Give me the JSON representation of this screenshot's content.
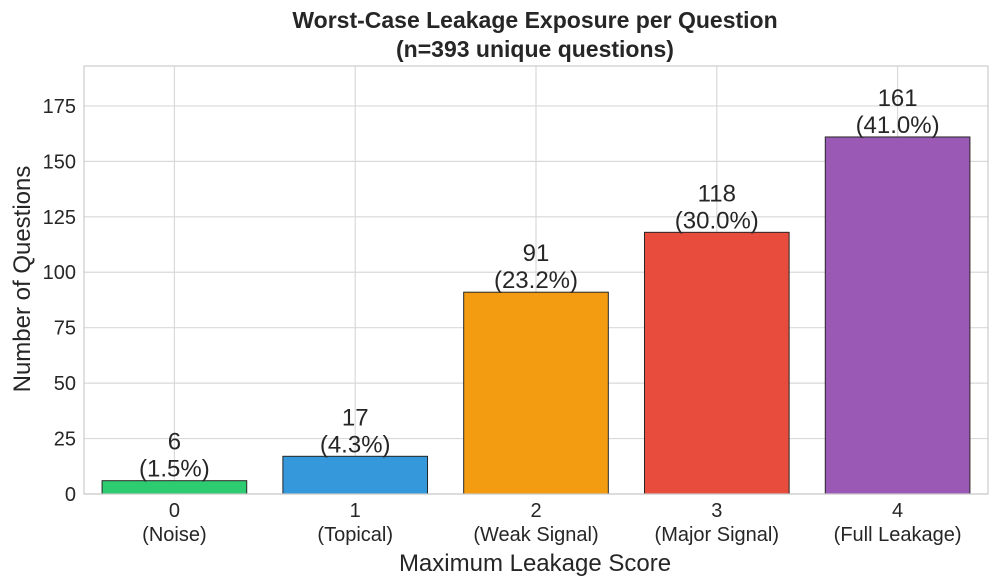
{
  "chart_data": {
    "type": "bar",
    "title": [
      "Worst-Case Leakage Exposure per Question",
      "(n=393 unique questions)"
    ],
    "xlabel": "Maximum Leakage Score",
    "ylabel": "Number of Questions",
    "categories": [
      {
        "score": "0",
        "name": "(Noise)"
      },
      {
        "score": "1",
        "name": "(Topical)"
      },
      {
        "score": "2",
        "name": "(Weak Signal)"
      },
      {
        "score": "3",
        "name": "(Major Signal)"
      },
      {
        "score": "4",
        "name": "(Full Leakage)"
      }
    ],
    "values": [
      6,
      17,
      91,
      118,
      161
    ],
    "value_labels": [
      "6",
      "17",
      "91",
      "118",
      "161"
    ],
    "percent_labels": [
      "(1.5%)",
      "(4.3%)",
      "(23.2%)",
      "(30.0%)",
      "(41.0%)"
    ],
    "colors": [
      "#2ecc71",
      "#3498db",
      "#f39c12",
      "#e74c3c",
      "#9b59b6"
    ],
    "ylim": [
      0,
      193
    ],
    "yticks": [
      0,
      25,
      50,
      75,
      100,
      125,
      150,
      175
    ],
    "grid": true,
    "legend": false
  }
}
